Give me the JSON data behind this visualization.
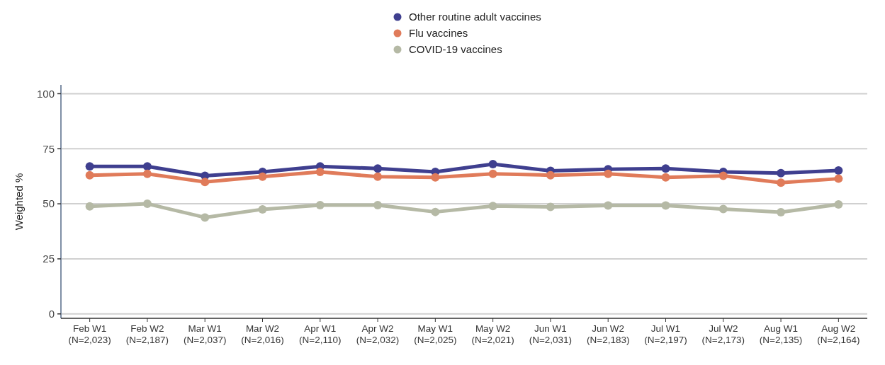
{
  "chart_data": {
    "type": "line",
    "ylabel": "Weighted %",
    "categories": [
      "Feb W1\n(N=2,023)",
      "Feb W2\n(N=2,187)",
      "Mar W1\n(N=2,037)",
      "Mar W2\n(N=2,016)",
      "Apr W1\n(N=2,110)",
      "Apr W2\n(N=2,032)",
      "May W1\n(N=2,025)",
      "May W2\n(N=2,021)",
      "Jun W1\n(N=2,031)",
      "Jun W2\n(N=2,183)",
      "Jul W1\n(N=2,197)",
      "Jul W2\n(N=2,173)",
      "Aug W1\n(N=2,135)",
      "Aug W2\n(N=2,164)"
    ],
    "series": [
      {
        "name": "Other routine adult vaccines",
        "color": "#3f3f8f",
        "values": [
          67,
          67,
          62.7,
          64.5,
          67,
          66,
          64.5,
          68,
          65,
          65.7,
          66,
          64.5,
          63.9,
          65.1
        ],
        "errors": [
          1.2,
          1.2,
          1.2,
          1.2,
          1.2,
          1.2,
          1.2,
          1.2,
          1.2,
          1.2,
          1.2,
          1.2,
          1.2,
          1.2
        ]
      },
      {
        "name": "Flu vaccines",
        "color": "#e07b5a",
        "values": [
          63,
          63.6,
          59.9,
          62.3,
          64.5,
          62.3,
          62,
          63.6,
          63,
          63.6,
          62,
          62.7,
          59.6,
          61.4
        ],
        "errors": [
          1.2,
          1.2,
          1.2,
          1.2,
          1.2,
          1.2,
          1.2,
          1.2,
          1.2,
          1.2,
          1.2,
          1.2,
          1.2,
          1.2
        ]
      },
      {
        "name": "COVID-19 vaccines",
        "color": "#b5b9a5",
        "values": [
          48.8,
          50,
          43.8,
          47.5,
          49.4,
          49.4,
          46.3,
          49,
          48.6,
          49.2,
          49.2,
          47.6,
          46.2,
          49.7
        ],
        "errors": [
          1.2,
          1.2,
          1.2,
          1.2,
          1.2,
          1.2,
          1.2,
          1.2,
          1.2,
          1.2,
          1.2,
          1.2,
          1.2,
          1.2
        ]
      }
    ],
    "ylim": [
      -2,
      104
    ],
    "yticks": [
      0,
      25,
      50,
      75,
      100
    ],
    "grid": "y",
    "legend": "top",
    "marker": "circle",
    "line_style": "solid"
  }
}
